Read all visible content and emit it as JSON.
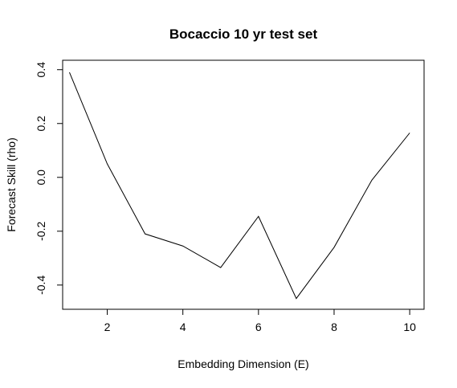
{
  "chart_data": {
    "type": "line",
    "title": "Bocaccio 10 yr test set",
    "xlabel": "Embedding Dimension (E)",
    "ylabel": "Forecast Skill (rho)",
    "x": [
      1,
      2,
      3,
      4,
      5,
      6,
      7,
      8,
      9,
      10
    ],
    "series": [
      {
        "values": [
          0.39,
          0.05,
          -0.21,
          -0.255,
          -0.335,
          -0.145,
          -0.45,
          -0.26,
          -0.01,
          0.165
        ]
      }
    ],
    "xlim": [
      0.82,
      10.38
    ],
    "ylim": [
      -0.49,
      0.435
    ],
    "xticks": [
      2,
      4,
      6,
      8,
      10
    ],
    "xtick_labels": [
      "2",
      "4",
      "6",
      "8",
      "10"
    ],
    "yticks": [
      -0.4,
      -0.2,
      0.0,
      0.2,
      0.4
    ],
    "ytick_labels": [
      "-0.4",
      "-0.2",
      "0.0",
      "0.2",
      "0.4"
    ],
    "grid": false,
    "line_color": "#000000"
  }
}
